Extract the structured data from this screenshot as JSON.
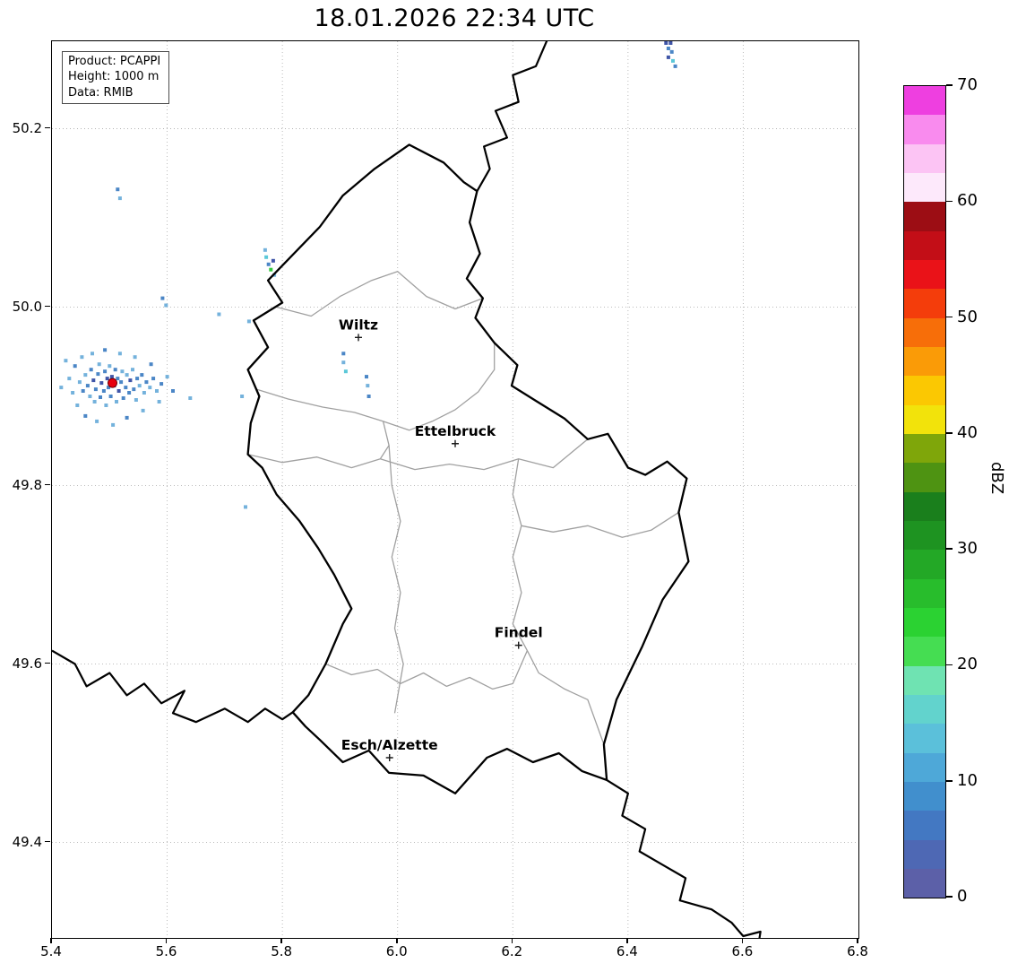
{
  "title": "18.01.2026 22:34 UTC",
  "info_box": {
    "lines": [
      "Product: PCAPPI",
      "Height: 1000 m",
      "Data: RMIB"
    ]
  },
  "axes": {
    "lon_range": [
      5.4,
      6.8
    ],
    "lat_range": [
      49.293,
      50.298
    ],
    "x_ticks": [
      5.4,
      5.6,
      5.8,
      6.0,
      6.2,
      6.4,
      6.6,
      6.8
    ],
    "x_tick_labels": [
      "5.4",
      "5.6",
      "5.8",
      "6.0",
      "6.2",
      "6.4",
      "6.6",
      "6.8"
    ],
    "y_ticks": [
      50.2,
      50.0,
      49.8,
      49.6,
      49.4
    ],
    "y_tick_labels": [
      "50.2",
      "50.0",
      "49.8",
      "49.6",
      "49.4"
    ],
    "grid": "dotted"
  },
  "colorbar": {
    "label": "dBZ",
    "vmin": 0,
    "vmax": 70,
    "ticks": [
      0,
      10,
      20,
      30,
      40,
      50,
      60,
      70
    ],
    "tick_labels": [
      "0",
      "10",
      "20",
      "30",
      "40",
      "50",
      "60",
      "70"
    ],
    "colors_bottom_to_top": [
      "#5c60a8",
      "#4e68b4",
      "#4378c2",
      "#418fcd",
      "#4ea8d8",
      "#5bc0da",
      "#62d3cd",
      "#6fe3b2",
      "#45dd52",
      "#2bd232",
      "#28bd2c",
      "#23a826",
      "#1e9321",
      "#1a7f1c",
      "#4e9312",
      "#7fa60a",
      "#f2e30b",
      "#fbc802",
      "#fa9b07",
      "#f76e09",
      "#f43d0b",
      "#ea1218",
      "#c30e17",
      "#9c0d14",
      "#fde9fb",
      "#fcc4f4",
      "#f98bee",
      "#ee3fe0"
    ]
  },
  "map": {
    "cities": [
      {
        "name": "Wiltz",
        "lon": 5.932,
        "lat": 49.966
      },
      {
        "name": "Ettelbruck",
        "lon": 6.1,
        "lat": 49.847
      },
      {
        "name": "Findel",
        "lon": 6.21,
        "lat": 49.621
      },
      {
        "name": "Esch/Alzette",
        "lon": 5.986,
        "lat": 49.495
      }
    ],
    "radar_site": {
      "lon": 5.505,
      "lat": 49.915,
      "color": "#e8000d"
    },
    "country_border": [
      [
        6.02,
        50.182
      ],
      [
        6.08,
        50.162
      ],
      [
        6.115,
        50.14
      ],
      [
        6.138,
        50.13
      ],
      [
        6.125,
        50.095
      ],
      [
        6.143,
        50.06
      ],
      [
        6.12,
        50.032
      ],
      [
        6.148,
        50.01
      ],
      [
        6.135,
        49.988
      ],
      [
        6.168,
        49.96
      ],
      [
        6.208,
        49.935
      ],
      [
        6.198,
        49.912
      ],
      [
        6.24,
        49.895
      ],
      [
        6.29,
        49.875
      ],
      [
        6.33,
        49.852
      ],
      [
        6.365,
        49.858
      ],
      [
        6.4,
        49.82
      ],
      [
        6.43,
        49.812
      ],
      [
        6.468,
        49.827
      ],
      [
        6.502,
        49.808
      ],
      [
        6.488,
        49.77
      ],
      [
        6.505,
        49.715
      ],
      [
        6.46,
        49.672
      ],
      [
        6.425,
        49.62
      ],
      [
        6.38,
        49.56
      ],
      [
        6.358,
        49.51
      ],
      [
        6.363,
        49.47
      ],
      [
        6.32,
        49.48
      ],
      [
        6.28,
        49.5
      ],
      [
        6.235,
        49.49
      ],
      [
        6.19,
        49.505
      ],
      [
        6.155,
        49.495
      ],
      [
        6.1,
        49.455
      ],
      [
        6.045,
        49.475
      ],
      [
        5.985,
        49.478
      ],
      [
        5.95,
        49.503
      ],
      [
        5.905,
        49.49
      ],
      [
        5.865,
        49.515
      ],
      [
        5.84,
        49.53
      ],
      [
        5.818,
        49.546
      ],
      [
        5.845,
        49.565
      ],
      [
        5.875,
        49.6
      ],
      [
        5.905,
        49.645
      ],
      [
        5.92,
        49.662
      ],
      [
        5.89,
        49.7
      ],
      [
        5.862,
        49.73
      ],
      [
        5.83,
        49.76
      ],
      [
        5.79,
        49.79
      ],
      [
        5.765,
        49.82
      ],
      [
        5.74,
        49.835
      ],
      [
        5.745,
        49.87
      ],
      [
        5.76,
        49.9
      ],
      [
        5.74,
        49.93
      ],
      [
        5.775,
        49.955
      ],
      [
        5.75,
        49.985
      ],
      [
        5.8,
        50.005
      ],
      [
        5.775,
        50.03
      ],
      [
        5.82,
        50.06
      ],
      [
        5.865,
        50.09
      ],
      [
        5.905,
        50.125
      ],
      [
        5.96,
        50.155
      ],
      [
        6.02,
        50.182
      ]
    ],
    "other_borders": [
      [
        [
          6.26,
          50.3
        ],
        [
          6.24,
          50.27
        ],
        [
          6.2,
          50.26
        ],
        [
          6.21,
          50.23
        ],
        [
          6.17,
          50.22
        ],
        [
          6.19,
          50.19
        ],
        [
          6.15,
          50.18
        ],
        [
          6.16,
          50.155
        ],
        [
          6.138,
          50.13
        ]
      ],
      [
        [
          6.363,
          49.47
        ],
        [
          6.4,
          49.455
        ],
        [
          6.39,
          49.43
        ],
        [
          6.43,
          49.415
        ],
        [
          6.42,
          49.39
        ],
        [
          6.46,
          49.375
        ],
        [
          6.5,
          49.36
        ],
        [
          6.49,
          49.335
        ],
        [
          6.545,
          49.325
        ],
        [
          6.58,
          49.31
        ],
        [
          6.6,
          49.295
        ],
        [
          6.63,
          49.3
        ],
        [
          6.62,
          49.26
        ]
      ],
      [
        [
          5.4,
          49.615
        ],
        [
          5.44,
          49.6
        ],
        [
          5.46,
          49.575
        ],
        [
          5.5,
          49.59
        ],
        [
          5.53,
          49.565
        ],
        [
          5.56,
          49.578
        ],
        [
          5.59,
          49.556
        ],
        [
          5.63,
          49.57
        ],
        [
          5.61,
          49.545
        ],
        [
          5.65,
          49.535
        ],
        [
          5.7,
          49.55
        ],
        [
          5.74,
          49.535
        ],
        [
          5.77,
          49.55
        ],
        [
          5.8,
          49.538
        ],
        [
          5.818,
          49.546
        ]
      ]
    ],
    "district_borders": [
      [
        [
          5.79,
          50.0
        ],
        [
          5.85,
          49.99
        ],
        [
          5.9,
          50.012
        ],
        [
          5.955,
          50.03
        ],
        [
          6.0,
          50.04
        ],
        [
          6.05,
          50.012
        ],
        [
          6.1,
          49.998
        ],
        [
          6.148,
          50.01
        ]
      ],
      [
        [
          5.755,
          49.908
        ],
        [
          5.81,
          49.897
        ],
        [
          5.87,
          49.888
        ],
        [
          5.925,
          49.882
        ],
        [
          5.975,
          49.872
        ],
        [
          6.02,
          49.862
        ],
        [
          6.06,
          49.872
        ],
        [
          6.1,
          49.885
        ],
        [
          6.14,
          49.905
        ],
        [
          6.168,
          49.93
        ],
        [
          6.168,
          49.96
        ]
      ],
      [
        [
          5.975,
          49.872
        ],
        [
          5.985,
          49.845
        ],
        [
          5.97,
          49.83
        ]
      ],
      [
        [
          5.74,
          49.835
        ],
        [
          5.8,
          49.826
        ],
        [
          5.86,
          49.832
        ],
        [
          5.92,
          49.82
        ],
        [
          5.97,
          49.83
        ],
        [
          6.03,
          49.818
        ],
        [
          6.09,
          49.824
        ],
        [
          6.15,
          49.818
        ],
        [
          6.21,
          49.83
        ],
        [
          6.27,
          49.82
        ],
        [
          6.33,
          49.852
        ]
      ],
      [
        [
          5.985,
          49.845
        ],
        [
          5.99,
          49.8
        ],
        [
          6.005,
          49.76
        ],
        [
          5.99,
          49.72
        ],
        [
          6.005,
          49.68
        ],
        [
          5.995,
          49.64
        ],
        [
          6.01,
          49.6
        ],
        [
          5.995,
          49.545
        ]
      ],
      [
        [
          6.21,
          49.83
        ],
        [
          6.2,
          49.79
        ],
        [
          6.215,
          49.755
        ],
        [
          6.2,
          49.72
        ],
        [
          6.215,
          49.68
        ],
        [
          6.2,
          49.645
        ],
        [
          6.225,
          49.615
        ],
        [
          6.245,
          49.59
        ],
        [
          6.29,
          49.572
        ],
        [
          6.33,
          49.56
        ],
        [
          6.358,
          49.51
        ]
      ],
      [
        [
          6.215,
          49.755
        ],
        [
          6.27,
          49.748
        ],
        [
          6.33,
          49.755
        ],
        [
          6.39,
          49.742
        ],
        [
          6.44,
          49.75
        ],
        [
          6.488,
          49.77
        ]
      ],
      [
        [
          5.875,
          49.6
        ],
        [
          5.92,
          49.588
        ],
        [
          5.965,
          49.594
        ],
        [
          6.005,
          49.578
        ],
        [
          6.045,
          49.59
        ],
        [
          6.085,
          49.575
        ],
        [
          6.125,
          49.585
        ],
        [
          6.165,
          49.572
        ],
        [
          6.2,
          49.578
        ],
        [
          6.225,
          49.615
        ]
      ]
    ],
    "echo_palette": {
      "b1": "#3f55a8",
      "b2": "#4b86c6",
      "b3": "#74b2dc",
      "c": "#5bc8d8",
      "g": "#35c93f"
    },
    "echoes": [
      [
        5.448,
        49.916,
        "b3"
      ],
      [
        5.454,
        49.906,
        "b2"
      ],
      [
        5.458,
        49.924,
        "b3"
      ],
      [
        5.462,
        49.912,
        "b2"
      ],
      [
        5.466,
        49.9,
        "b3"
      ],
      [
        5.468,
        49.93,
        "b2"
      ],
      [
        5.472,
        49.918,
        "b1"
      ],
      [
        5.474,
        49.894,
        "b3"
      ],
      [
        5.476,
        49.908,
        "b2"
      ],
      [
        5.48,
        49.925,
        "b2"
      ],
      [
        5.482,
        49.936,
        "b3"
      ],
      [
        5.484,
        49.899,
        "b2"
      ],
      [
        5.486,
        49.915,
        "b1"
      ],
      [
        5.49,
        49.906,
        "b2"
      ],
      [
        5.492,
        49.928,
        "b2"
      ],
      [
        5.494,
        49.89,
        "b3"
      ],
      [
        5.496,
        49.92,
        "b1"
      ],
      [
        5.498,
        49.91,
        "b2"
      ],
      [
        5.5,
        49.934,
        "b3"
      ],
      [
        5.502,
        49.9,
        "b2"
      ],
      [
        5.504,
        49.922,
        "b1"
      ],
      [
        5.508,
        49.912,
        "b1"
      ],
      [
        5.51,
        49.93,
        "b2"
      ],
      [
        5.512,
        49.894,
        "b3"
      ],
      [
        5.514,
        49.92,
        "b2"
      ],
      [
        5.516,
        49.906,
        "b1"
      ],
      [
        5.52,
        49.916,
        "b2"
      ],
      [
        5.522,
        49.928,
        "b3"
      ],
      [
        5.524,
        49.898,
        "b2"
      ],
      [
        5.528,
        49.91,
        "b2"
      ],
      [
        5.53,
        49.924,
        "b3"
      ],
      [
        5.534,
        49.904,
        "b2"
      ],
      [
        5.536,
        49.918,
        "b1"
      ],
      [
        5.54,
        49.93,
        "b3"
      ],
      [
        5.542,
        49.908,
        "b2"
      ],
      [
        5.546,
        49.896,
        "b3"
      ],
      [
        5.548,
        49.92,
        "b2"
      ],
      [
        5.552,
        49.912,
        "b3"
      ],
      [
        5.556,
        49.924,
        "b2"
      ],
      [
        5.56,
        49.904,
        "b3"
      ],
      [
        5.564,
        49.916,
        "b2"
      ],
      [
        5.57,
        49.91,
        "b3"
      ],
      [
        5.576,
        49.92,
        "b2"
      ],
      [
        5.582,
        49.906,
        "b3"
      ],
      [
        5.59,
        49.914,
        "b2"
      ],
      [
        5.43,
        49.92,
        "b3"
      ],
      [
        5.436,
        49.904,
        "b3"
      ],
      [
        5.44,
        49.934,
        "b2"
      ],
      [
        5.444,
        49.89,
        "b3"
      ],
      [
        5.452,
        49.944,
        "b3"
      ],
      [
        5.458,
        49.878,
        "b2"
      ],
      [
        5.47,
        49.948,
        "b3"
      ],
      [
        5.478,
        49.872,
        "b3"
      ],
      [
        5.492,
        49.952,
        "b2"
      ],
      [
        5.506,
        49.868,
        "b3"
      ],
      [
        5.518,
        49.948,
        "b3"
      ],
      [
        5.53,
        49.876,
        "b2"
      ],
      [
        5.544,
        49.944,
        "b3"
      ],
      [
        5.558,
        49.884,
        "b3"
      ],
      [
        5.572,
        49.936,
        "b2"
      ],
      [
        5.586,
        49.894,
        "b3"
      ],
      [
        5.6,
        49.922,
        "b3"
      ],
      [
        5.61,
        49.906,
        "b2"
      ],
      [
        5.424,
        49.94,
        "b3"
      ],
      [
        5.416,
        49.91,
        "b3"
      ],
      [
        5.64,
        49.898,
        "b3"
      ],
      [
        5.514,
        50.132,
        "b2"
      ],
      [
        5.518,
        50.122,
        "b3"
      ],
      [
        5.592,
        50.01,
        "b2"
      ],
      [
        5.598,
        50.002,
        "b3"
      ],
      [
        5.69,
        49.992,
        "b3"
      ],
      [
        5.742,
        49.984,
        "b3"
      ],
      [
        5.772,
        50.056,
        "c"
      ],
      [
        5.776,
        50.048,
        "b2"
      ],
      [
        5.78,
        50.042,
        "g"
      ],
      [
        5.784,
        50.052,
        "b1"
      ],
      [
        5.786,
        50.036,
        "b3"
      ],
      [
        5.77,
        50.064,
        "b3"
      ],
      [
        5.73,
        49.9,
        "b3"
      ],
      [
        5.736,
        49.776,
        "b3"
      ],
      [
        5.906,
        49.948,
        "b2"
      ],
      [
        5.906,
        49.938,
        "b3"
      ],
      [
        5.91,
        49.928,
        "c"
      ],
      [
        5.946,
        49.922,
        "b2"
      ],
      [
        5.948,
        49.912,
        "b3"
      ],
      [
        5.95,
        49.9,
        "b2"
      ],
      [
        6.466,
        50.296,
        "b1"
      ],
      [
        6.47,
        50.29,
        "b2"
      ],
      [
        6.474,
        50.296,
        "b1"
      ],
      [
        6.476,
        50.286,
        "b2"
      ],
      [
        6.47,
        50.28,
        "b1"
      ],
      [
        6.478,
        50.276,
        "c"
      ],
      [
        6.482,
        50.27,
        "b2"
      ]
    ]
  }
}
